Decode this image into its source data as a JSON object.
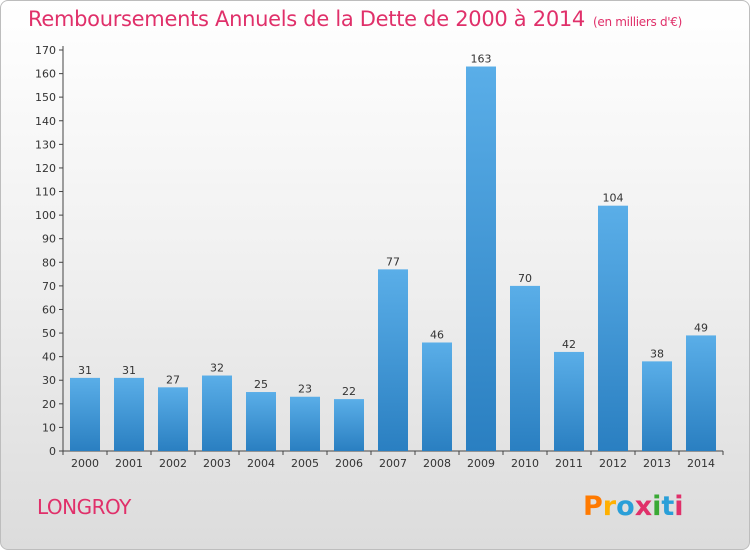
{
  "header": {
    "title": "Remboursements Annuels de la Dette de 2000 à 2014",
    "unit": "(en milliers d'€)"
  },
  "footer": {
    "place": "LONGROY",
    "brand": "Proxiti",
    "brand_colors": [
      "#ff7a00",
      "#ffb000",
      "#2a9fd8",
      "#e0306a",
      "#3aa935",
      "#2a9fd8",
      "#e0306a"
    ]
  },
  "colors": {
    "accent": "#e0306a",
    "bar_top": "#5aaee8",
    "bar_bottom": "#2a7fc1"
  },
  "chart_data": {
    "type": "bar",
    "title": "Remboursements Annuels de la Dette de 2000 à 2014",
    "xlabel": "",
    "ylabel": "",
    "categories": [
      "2000",
      "2001",
      "2002",
      "2003",
      "2004",
      "2005",
      "2006",
      "2007",
      "2008",
      "2009",
      "2010",
      "2011",
      "2012",
      "2013",
      "2014"
    ],
    "values": [
      31,
      31,
      27,
      32,
      25,
      23,
      22,
      77,
      46,
      163,
      70,
      42,
      104,
      38,
      49
    ],
    "ylim": [
      0,
      170
    ],
    "yticks": [
      0,
      10,
      20,
      30,
      40,
      50,
      60,
      70,
      80,
      90,
      100,
      110,
      120,
      130,
      140,
      150,
      160,
      170
    ],
    "grid": false,
    "data_labels": true
  }
}
